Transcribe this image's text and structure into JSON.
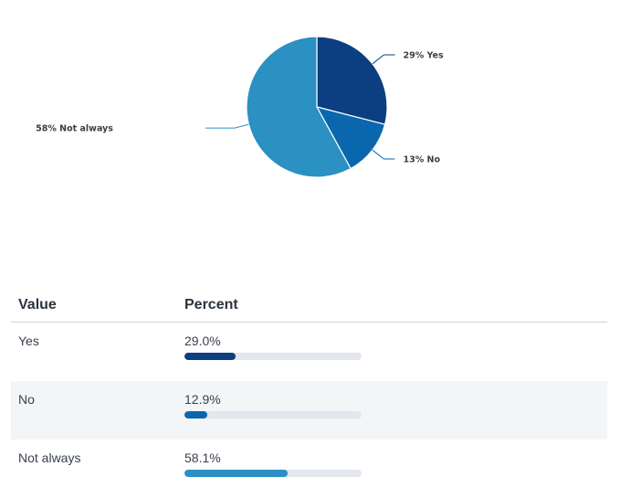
{
  "chart_data": {
    "type": "pie",
    "slices": [
      {
        "label": "Yes",
        "percent": 29,
        "display": "29% Yes",
        "color": "#0b3f82",
        "label_side": "right"
      },
      {
        "label": "No",
        "percent": 13,
        "display": "13% No",
        "color": "#0b67ad",
        "label_side": "right"
      },
      {
        "label": "Not always",
        "percent": 58,
        "display": "58% Not always",
        "color": "#2b90c2",
        "label_side": "left"
      }
    ]
  },
  "table": {
    "headers": {
      "value": "Value",
      "percent": "Percent"
    },
    "rows": [
      {
        "value": "Yes",
        "percent_text": "29.0%",
        "fraction": 0.29,
        "color": "#0b3f82"
      },
      {
        "value": "No",
        "percent_text": "12.9%",
        "fraction": 0.129,
        "color": "#0b67ad"
      },
      {
        "value": "Not always",
        "percent_text": "58.1%",
        "fraction": 0.581,
        "color": "#2b90c2"
      }
    ]
  }
}
